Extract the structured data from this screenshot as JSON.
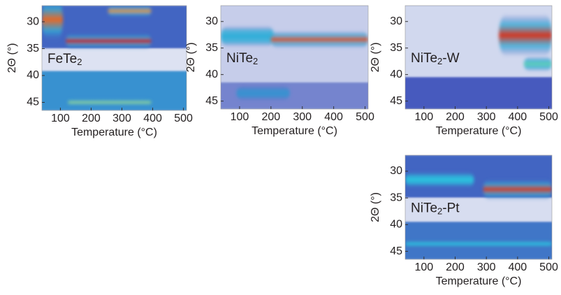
{
  "chart_data": [
    {
      "type": "heatmap",
      "label": {
        "main": "FeTe",
        "sub": "2"
      },
      "xlabel": "Temperature (°C)",
      "ylabel": "2Θ (°)",
      "xlim": [
        40,
        510
      ],
      "ylim": [
        27,
        46.5
      ],
      "y_inverted": true,
      "xticks": [
        100,
        200,
        300,
        400,
        500
      ],
      "yticks": [
        30,
        35,
        40,
        45
      ],
      "regions": [
        {
          "y": [
            27,
            35
          ],
          "level": 0.32
        },
        {
          "y": [
            35,
            39.2
          ],
          "level": 0.04
        },
        {
          "y": [
            39.2,
            46.5
          ],
          "level": 0.4
        }
      ],
      "peaks": [
        {
          "x": [
            40,
            108
          ],
          "y": 29.6,
          "w": 4.2,
          "level": 0.88
        },
        {
          "x": [
            255,
            395
          ],
          "y": 28,
          "w": 1.2,
          "level": 0.82
        },
        {
          "x": [
            118,
            395
          ],
          "y": 33.6,
          "w": 1.5,
          "level": 1
        },
        {
          "x": [
            125,
            395
          ],
          "y": 45,
          "w": 0.7,
          "level": 0.62
        }
      ]
    },
    {
      "type": "heatmap",
      "label": {
        "main": "NiTe",
        "sub": "2"
      },
      "xlabel": "Temperature (°C)",
      "ylabel": "2Θ (°)",
      "xlim": [
        40,
        510
      ],
      "ylim": [
        27,
        46.5
      ],
      "y_inverted": true,
      "xticks": [
        100,
        200,
        300,
        400,
        500
      ],
      "yticks": [
        30,
        35,
        40,
        45
      ],
      "regions": [
        {
          "y": [
            27,
            41.5
          ],
          "level": 0.08
        },
        {
          "y": [
            41.5,
            46.5
          ],
          "level": 0.22
        }
      ],
      "peaks": [
        {
          "x": [
            40,
            210
          ],
          "y": 32.8,
          "w": 2,
          "level": 0.45
        },
        {
          "x": [
            200,
            510
          ],
          "y": 33.4,
          "w": 1.6,
          "level": 0.92
        },
        {
          "x": [
            90,
            260
          ],
          "y": 43.5,
          "w": 1.4,
          "level": 0.4
        }
      ]
    },
    {
      "type": "heatmap",
      "label": {
        "main": "NiTe",
        "sub": "2",
        "suffix": "-W"
      },
      "xlabel": "Temperature (°C)",
      "ylabel": "2Θ (°)",
      "xlim": [
        40,
        510
      ],
      "ylim": [
        27,
        46.5
      ],
      "y_inverted": true,
      "xticks": [
        100,
        200,
        300,
        400,
        500
      ],
      "yticks": [
        30,
        35,
        40,
        45
      ],
      "regions": [
        {
          "y": [
            27,
            40.5
          ],
          "level": 0.06
        },
        {
          "y": [
            40.5,
            46.5
          ],
          "level": 0.3
        }
      ],
      "peaks": [
        {
          "x": [
            340,
            510
          ],
          "y": 32.6,
          "w": 4,
          "level": 0.96
        },
        {
          "x": [
            420,
            510
          ],
          "y": 38,
          "w": 1.4,
          "level": 0.55
        }
      ]
    },
    {
      "type": "heatmap",
      "label": {
        "main": "NiTe",
        "sub": "2",
        "suffix": "-Pt"
      },
      "xlabel": "Temperature (°C)",
      "ylabel": "2Θ (°)",
      "xlim": [
        40,
        510
      ],
      "ylim": [
        27,
        46.5
      ],
      "y_inverted": true,
      "xticks": [
        100,
        200,
        300,
        400,
        500
      ],
      "yticks": [
        30,
        35,
        40,
        45
      ],
      "regions": [
        {
          "y": [
            27,
            35
          ],
          "level": 0.32
        },
        {
          "y": [
            35,
            39.5
          ],
          "level": 0.05
        },
        {
          "y": [
            39.5,
            46.5
          ],
          "level": 0.35
        }
      ],
      "peaks": [
        {
          "x": [
            40,
            260
          ],
          "y": 31.6,
          "w": 1.6,
          "level": 0.5
        },
        {
          "x": [
            290,
            510
          ],
          "y": 33.4,
          "w": 2,
          "level": 0.95
        },
        {
          "x": [
            40,
            510
          ],
          "y": 43.6,
          "w": 0.6,
          "level": 0.5
        }
      ]
    }
  ]
}
